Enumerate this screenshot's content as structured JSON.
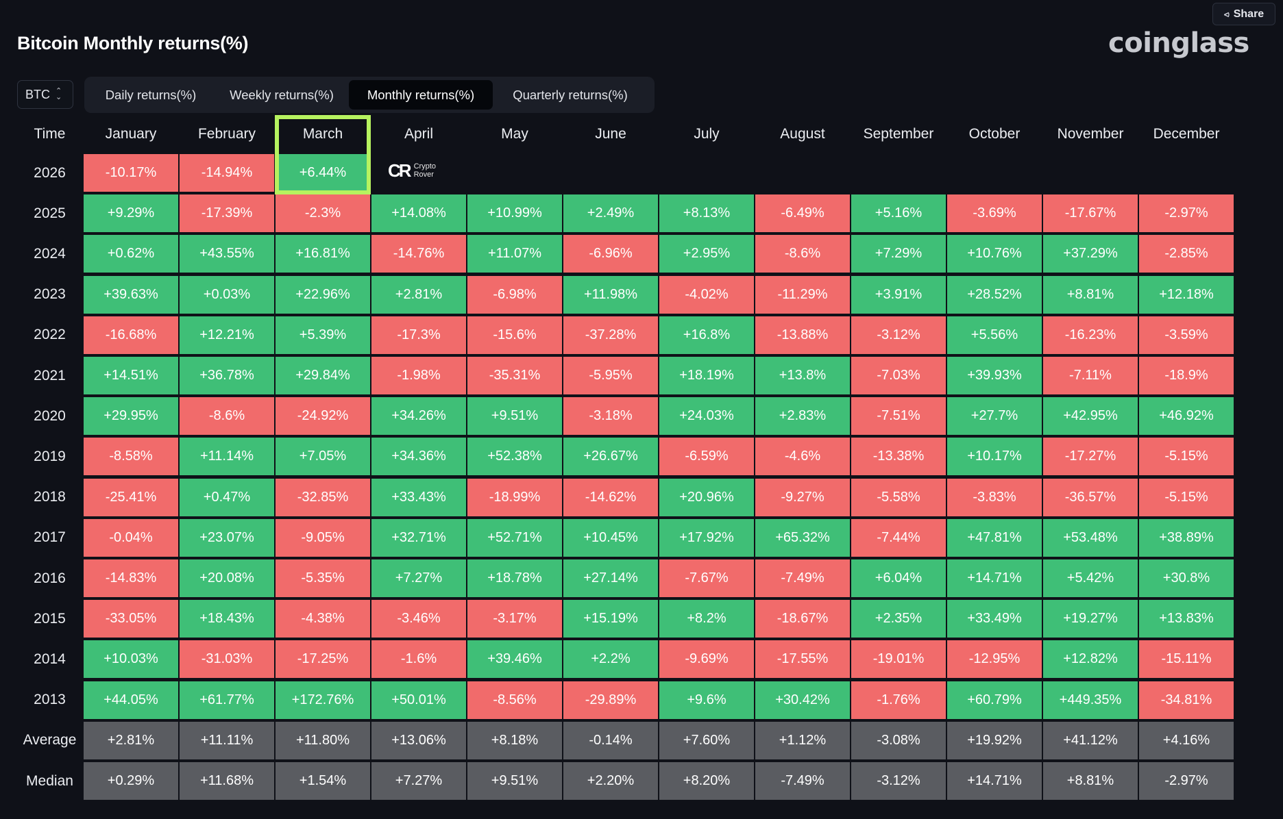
{
  "header": {
    "title": "Bitcoin Monthly returns(%)",
    "brand": "coinglass",
    "share_label": "Share"
  },
  "controls": {
    "asset": "BTC",
    "tabs": [
      {
        "label": "Daily returns(%)",
        "active": false
      },
      {
        "label": "Weekly returns(%)",
        "active": false
      },
      {
        "label": "Monthly returns(%)",
        "active": true
      },
      {
        "label": "Quarterly returns(%)",
        "active": false
      }
    ]
  },
  "watermark": {
    "line1": "Crypto",
    "line2": "Rover"
  },
  "table": {
    "corner_label": "Time",
    "months": [
      "January",
      "February",
      "March",
      "April",
      "May",
      "June",
      "July",
      "August",
      "September",
      "October",
      "November",
      "December"
    ],
    "rows": [
      {
        "year": "2026",
        "values": [
          "-10.17%",
          "-14.94%",
          "+6.44%",
          "",
          "",
          "",
          "",
          "",
          "",
          "",
          "",
          ""
        ]
      },
      {
        "year": "2025",
        "values": [
          "+9.29%",
          "-17.39%",
          "-2.3%",
          "+14.08%",
          "+10.99%",
          "+2.49%",
          "+8.13%",
          "-6.49%",
          "+5.16%",
          "-3.69%",
          "-17.67%",
          "-2.97%"
        ]
      },
      {
        "year": "2024",
        "values": [
          "+0.62%",
          "+43.55%",
          "+16.81%",
          "-14.76%",
          "+11.07%",
          "-6.96%",
          "+2.95%",
          "-8.6%",
          "+7.29%",
          "+10.76%",
          "+37.29%",
          "-2.85%"
        ]
      },
      {
        "year": "2023",
        "values": [
          "+39.63%",
          "+0.03%",
          "+22.96%",
          "+2.81%",
          "-6.98%",
          "+11.98%",
          "-4.02%",
          "-11.29%",
          "+3.91%",
          "+28.52%",
          "+8.81%",
          "+12.18%"
        ]
      },
      {
        "year": "2022",
        "values": [
          "-16.68%",
          "+12.21%",
          "+5.39%",
          "-17.3%",
          "-15.6%",
          "-37.28%",
          "+16.8%",
          "-13.88%",
          "-3.12%",
          "+5.56%",
          "-16.23%",
          "-3.59%"
        ]
      },
      {
        "year": "2021",
        "values": [
          "+14.51%",
          "+36.78%",
          "+29.84%",
          "-1.98%",
          "-35.31%",
          "-5.95%",
          "+18.19%",
          "+13.8%",
          "-7.03%",
          "+39.93%",
          "-7.11%",
          "-18.9%"
        ]
      },
      {
        "year": "2020",
        "values": [
          "+29.95%",
          "-8.6%",
          "-24.92%",
          "+34.26%",
          "+9.51%",
          "-3.18%",
          "+24.03%",
          "+2.83%",
          "-7.51%",
          "+27.7%",
          "+42.95%",
          "+46.92%"
        ]
      },
      {
        "year": "2019",
        "values": [
          "-8.58%",
          "+11.14%",
          "+7.05%",
          "+34.36%",
          "+52.38%",
          "+26.67%",
          "-6.59%",
          "-4.6%",
          "-13.38%",
          "+10.17%",
          "-17.27%",
          "-5.15%"
        ]
      },
      {
        "year": "2018",
        "values": [
          "-25.41%",
          "+0.47%",
          "-32.85%",
          "+33.43%",
          "-18.99%",
          "-14.62%",
          "+20.96%",
          "-9.27%",
          "-5.58%",
          "-3.83%",
          "-36.57%",
          "-5.15%"
        ]
      },
      {
        "year": "2017",
        "values": [
          "-0.04%",
          "+23.07%",
          "-9.05%",
          "+32.71%",
          "+52.71%",
          "+10.45%",
          "+17.92%",
          "+65.32%",
          "-7.44%",
          "+47.81%",
          "+53.48%",
          "+38.89%"
        ]
      },
      {
        "year": "2016",
        "values": [
          "-14.83%",
          "+20.08%",
          "-5.35%",
          "+7.27%",
          "+18.78%",
          "+27.14%",
          "-7.67%",
          "-7.49%",
          "+6.04%",
          "+14.71%",
          "+5.42%",
          "+30.8%"
        ]
      },
      {
        "year": "2015",
        "values": [
          "-33.05%",
          "+18.43%",
          "-4.38%",
          "-3.46%",
          "-3.17%",
          "+15.19%",
          "+8.2%",
          "-18.67%",
          "+2.35%",
          "+33.49%",
          "+19.27%",
          "+13.83%"
        ]
      },
      {
        "year": "2014",
        "values": [
          "+10.03%",
          "-31.03%",
          "-17.25%",
          "-1.6%",
          "+39.46%",
          "+2.2%",
          "-9.69%",
          "-17.55%",
          "-19.01%",
          "-12.95%",
          "+12.82%",
          "-15.11%"
        ]
      },
      {
        "year": "2013",
        "values": [
          "+44.05%",
          "+61.77%",
          "+172.76%",
          "+50.01%",
          "-8.56%",
          "-29.89%",
          "+9.6%",
          "+30.42%",
          "-1.76%",
          "+60.79%",
          "+449.35%",
          "-34.81%"
        ]
      }
    ],
    "summary_rows": [
      {
        "label": "Average",
        "values": [
          "+2.81%",
          "+11.11%",
          "+11.80%",
          "+13.06%",
          "+8.18%",
          "-0.14%",
          "+7.60%",
          "+1.12%",
          "-3.08%",
          "+19.92%",
          "+41.12%",
          "+4.16%"
        ]
      },
      {
        "label": "Median",
        "values": [
          "+0.29%",
          "+11.68%",
          "+1.54%",
          "+7.27%",
          "+9.51%",
          "+2.20%",
          "+8.20%",
          "-7.49%",
          "-3.12%",
          "+14.71%",
          "+8.81%",
          "-2.97%"
        ]
      }
    ],
    "colors": {
      "positive": "#3fbf77",
      "negative": "#f16b6b",
      "summary": "#5a5c61",
      "highlight": "#b6f25f"
    },
    "highlighted_column": "March"
  }
}
